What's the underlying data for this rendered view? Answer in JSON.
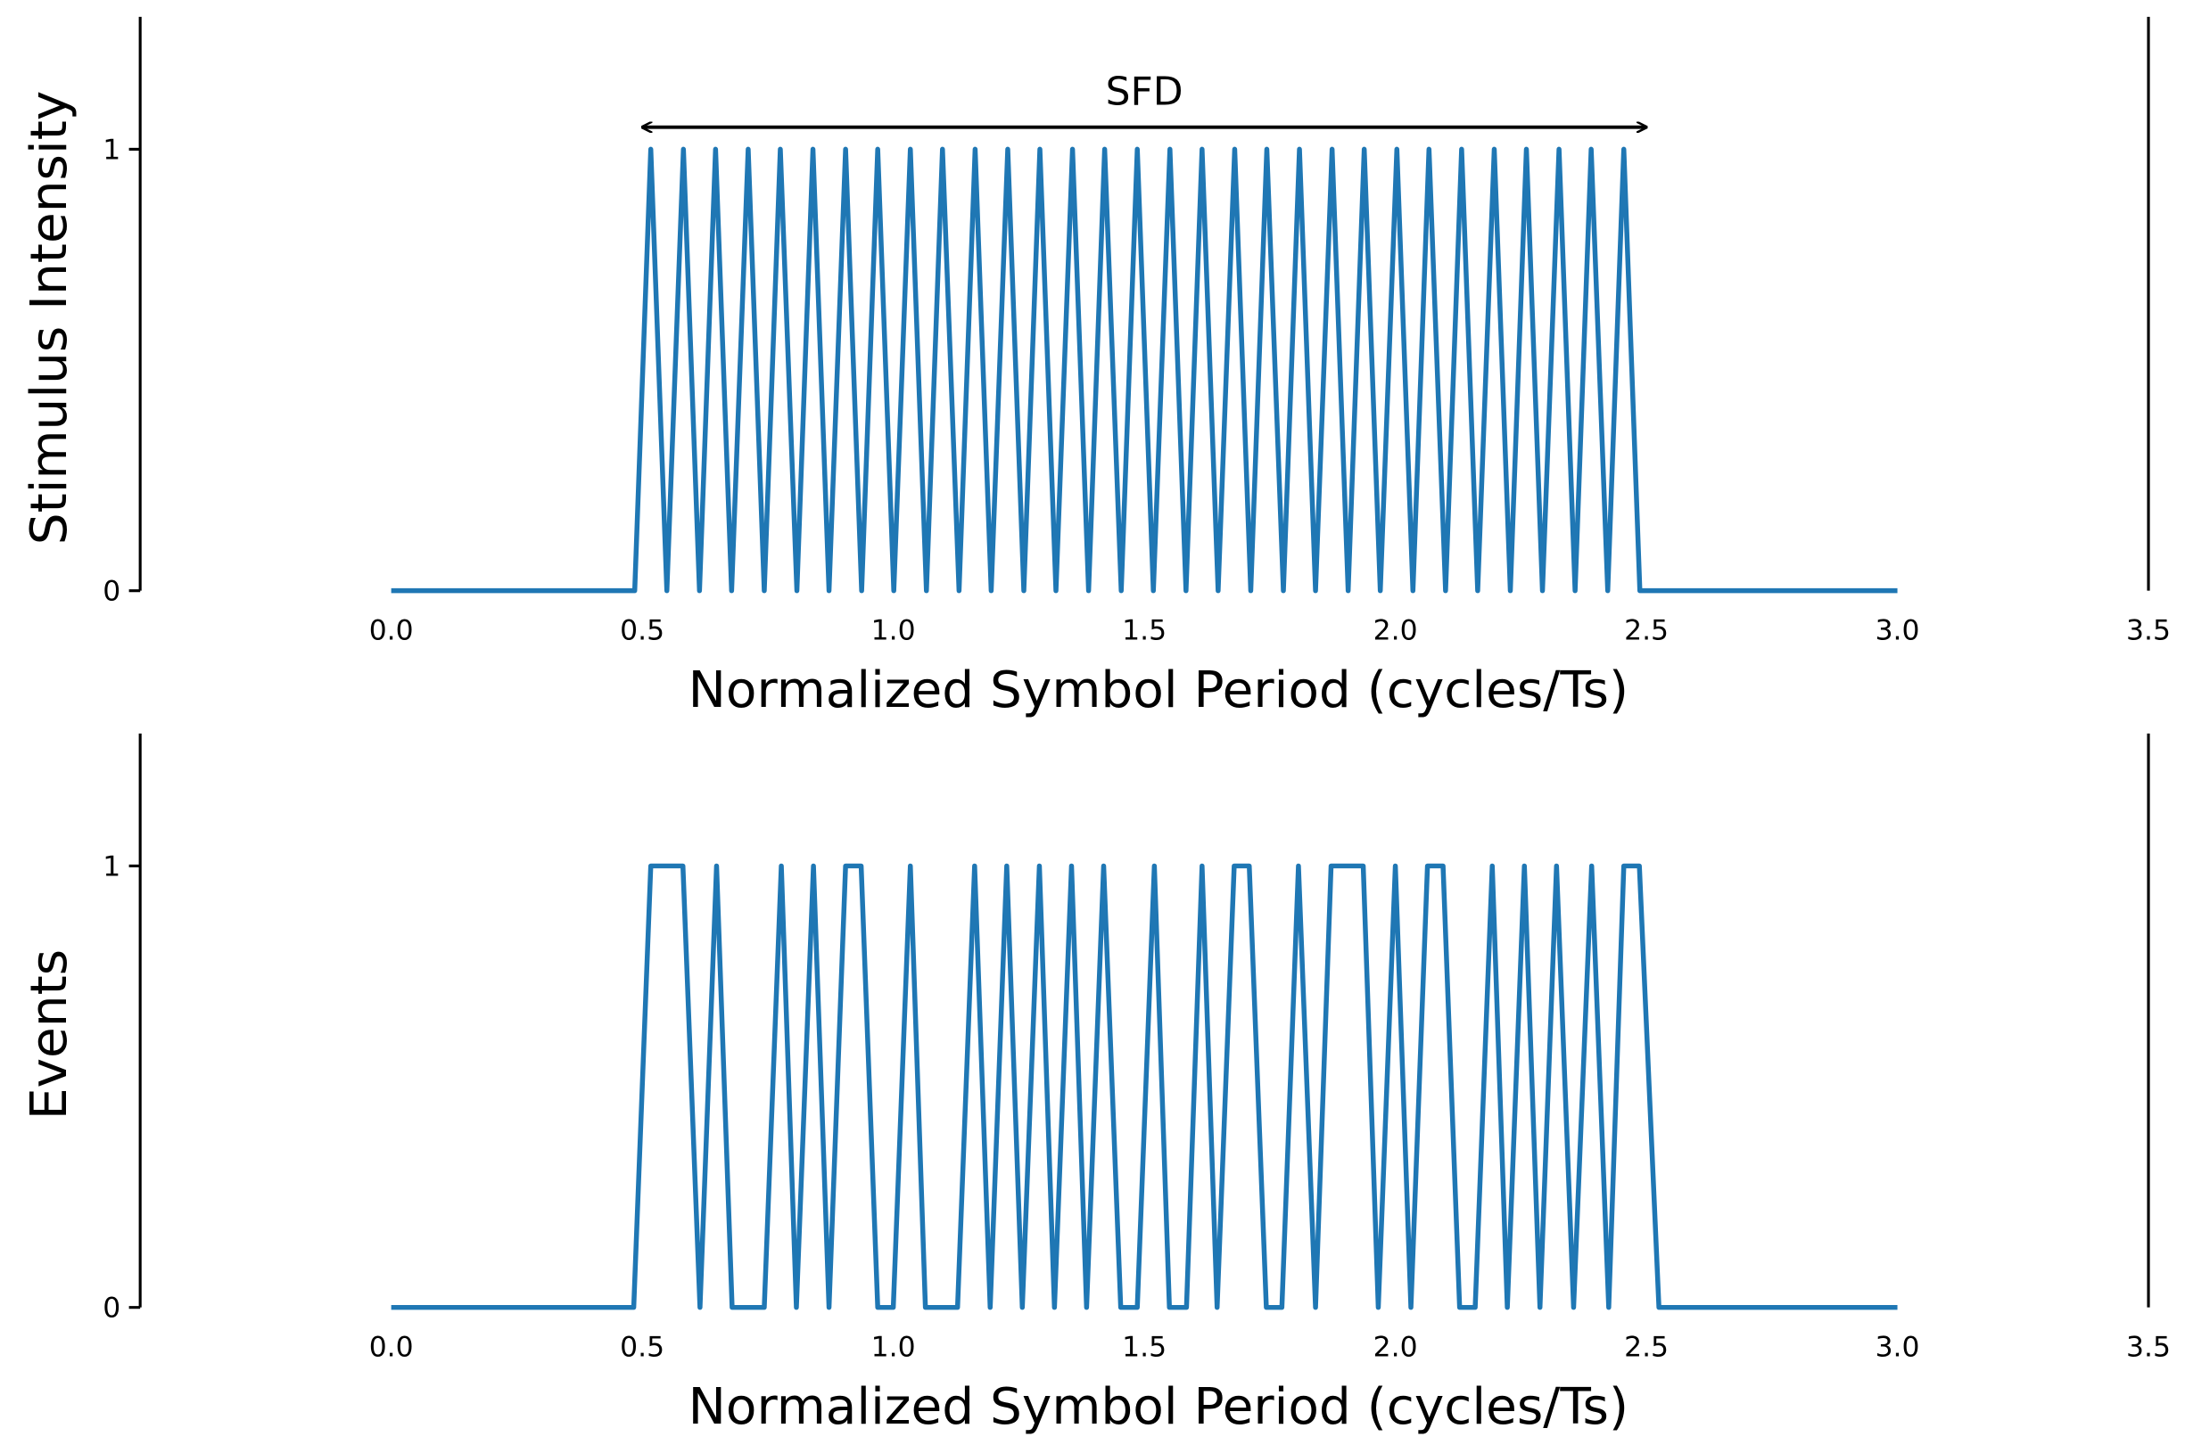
{
  "chart_data": [
    {
      "type": "line",
      "xlabel": "Normalized Symbol Period (cycles/Ts)",
      "ylabel": "Stimulus Intensity",
      "color": "#1f77b4",
      "x": [
        0,
        0.485,
        0.517,
        0.549,
        0.582,
        0.614,
        0.646,
        0.678,
        0.711,
        0.743,
        0.775,
        0.808,
        0.84,
        0.872,
        0.905,
        0.937,
        0.969,
        1.001,
        1.034,
        1.066,
        1.098,
        1.131,
        1.163,
        1.195,
        1.228,
        1.26,
        1.292,
        1.324,
        1.357,
        1.389,
        1.421,
        1.454,
        1.486,
        1.518,
        1.551,
        1.583,
        1.615,
        1.647,
        1.68,
        1.712,
        1.744,
        1.777,
        1.809,
        1.841,
        1.874,
        1.906,
        1.938,
        1.97,
        2.003,
        2.035,
        2.067,
        2.1,
        2.132,
        2.164,
        2.197,
        2.229,
        2.261,
        2.293,
        2.326,
        2.358,
        2.39,
        2.423,
        2.455,
        2.487,
        3.0
      ],
      "values": [
        0,
        0,
        1,
        0,
        1,
        0,
        1,
        0,
        1,
        0,
        1,
        0,
        1,
        0,
        1,
        0,
        1,
        0,
        1,
        0,
        1,
        0,
        1,
        0,
        1,
        0,
        1,
        0,
        1,
        0,
        1,
        0,
        1,
        0,
        1,
        0,
        1,
        0,
        1,
        0,
        1,
        0,
        1,
        0,
        1,
        0,
        1,
        0,
        1,
        0,
        1,
        0,
        1,
        0,
        1,
        0,
        1,
        0,
        1,
        0,
        1,
        0,
        1,
        0,
        0
      ],
      "xlim": [
        -0.5,
        3.5
      ],
      "ylim": [
        0,
        1.3
      ],
      "xticks": [
        {
          "value": 0,
          "label": "0.0"
        },
        0.5,
        {
          "value": 1,
          "label": "1.0"
        },
        1.5,
        {
          "value": 2,
          "label": "2.0"
        },
        2.5,
        {
          "value": 3,
          "label": "3.0"
        },
        3.5
      ],
      "yticks": [
        0,
        1
      ],
      "annotations": [
        {
          "text": "SFD",
          "x_start": 0.5,
          "x_end": 2.5,
          "y": 1.05
        }
      ]
    },
    {
      "type": "line",
      "xlabel": "Normalized Symbol Period (cycles/Ts)",
      "ylabel": "Events",
      "color": "#1f77b4",
      "x": [
        0,
        0.483,
        0.517,
        0.581,
        0.615,
        0.648,
        0.679,
        0.743,
        0.777,
        0.807,
        0.841,
        0.872,
        0.905,
        0.936,
        0.969,
        1.0,
        1.034,
        1.064,
        1.128,
        1.162,
        1.193,
        1.226,
        1.257,
        1.291,
        1.321,
        1.355,
        1.385,
        1.419,
        1.453,
        1.486,
        1.52,
        1.55,
        1.584,
        1.615,
        1.645,
        1.679,
        1.709,
        1.743,
        1.774,
        1.807,
        1.841,
        1.872,
        1.936,
        1.966,
        2.0,
        2.031,
        2.064,
        2.095,
        2.128,
        2.159,
        2.193,
        2.223,
        2.257,
        2.288,
        2.321,
        2.355,
        2.391,
        2.425,
        2.455,
        2.486,
        2.525,
        3.0
      ],
      "values": [
        0,
        0,
        1,
        1,
        0,
        1,
        0,
        0,
        1,
        0,
        1,
        0,
        1,
        1,
        0,
        0,
        1,
        0,
        0,
        1,
        0,
        1,
        0,
        1,
        0,
        1,
        0,
        1,
        0,
        0,
        1,
        0,
        0,
        1,
        0,
        1,
        1,
        0,
        0,
        1,
        0,
        1,
        1,
        0,
        1,
        0,
        1,
        1,
        0,
        0,
        1,
        0,
        1,
        0,
        1,
        0,
        1,
        0,
        1,
        1,
        0,
        0
      ],
      "xlim": [
        -0.5,
        3.5
      ],
      "ylim": [
        0,
        1.3
      ],
      "xticks": [
        {
          "value": 0,
          "label": "0.0"
        },
        0.5,
        {
          "value": 1,
          "label": "1.0"
        },
        1.5,
        {
          "value": 2,
          "label": "2.0"
        },
        2.5,
        {
          "value": 3,
          "label": "3.0"
        },
        3.5
      ],
      "yticks": [
        0,
        1
      ]
    }
  ]
}
